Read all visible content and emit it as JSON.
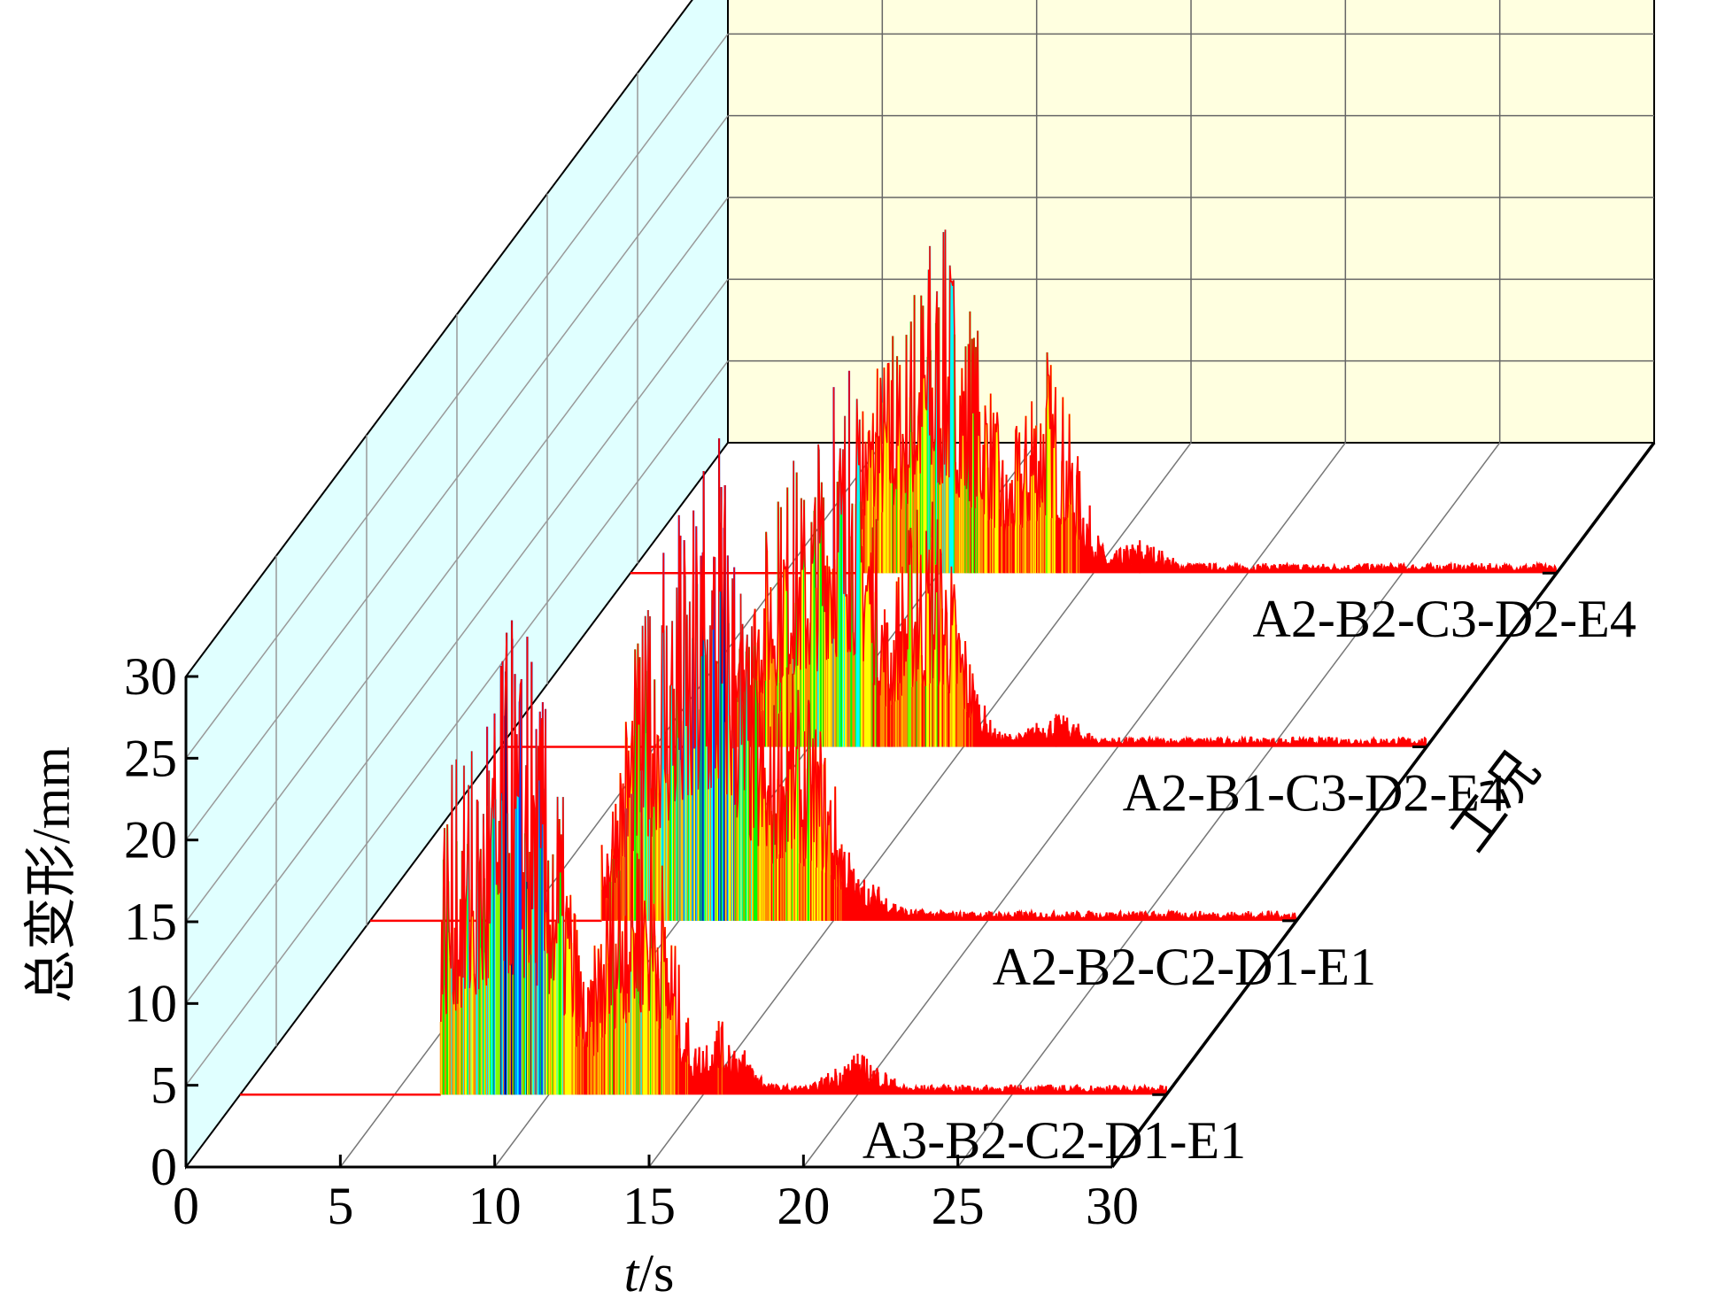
{
  "chart_data": {
    "type": "line",
    "subtype": "3d-waterfall",
    "xlabel_italic": "t",
    "xlabel_unit": "/s",
    "ylabel": "总变形/mm",
    "zlabel": "工况",
    "xlim": [
      0,
      30
    ],
    "ylim": [
      0,
      30
    ],
    "x_ticks": [
      "0",
      "5",
      "10",
      "15",
      "20",
      "25",
      "30"
    ],
    "y_ticks": [
      "0",
      "5",
      "10",
      "15",
      "20",
      "25",
      "30"
    ],
    "grid": true,
    "colormap": [
      "#ff0000",
      "#ff8c00",
      "#ffff00",
      "#00ff00",
      "#00ffff",
      "#0040ff",
      "#000080"
    ],
    "wall_colors": {
      "back": "#ffffe0",
      "side": "#e0ffff"
    },
    "series": [
      {
        "name": "A3-B2-C2-D1-E1",
        "onset": 6.5,
        "baseline_end": 30,
        "peaks": [
          [
            7.0,
            20.5
          ],
          [
            7.5,
            21.0
          ],
          [
            8.0,
            22.5
          ],
          [
            8.5,
            26.5
          ],
          [
            8.8,
            29.0
          ],
          [
            9.3,
            28.0
          ],
          [
            9.8,
            24.0
          ],
          [
            12.5,
            17.5
          ],
          [
            13.0,
            19.8
          ],
          [
            15.5,
            4.5
          ],
          [
            20.0,
            2.5
          ]
        ]
      },
      {
        "name": "A2-B2-C2-D1-E1",
        "onset": 7.5,
        "baseline_end": 30,
        "peaks": [
          [
            9.0,
            19.0
          ],
          [
            9.5,
            22.5
          ],
          [
            10.0,
            24.8
          ],
          [
            10.8,
            27.5
          ],
          [
            11.3,
            29.5
          ],
          [
            12.0,
            20.0
          ],
          [
            13.5,
            15.5
          ],
          [
            14.2,
            13.5
          ],
          [
            16.0,
            2.5
          ]
        ]
      },
      {
        "name": "A2-B1-C3-D2-E4",
        "onset": 7.5,
        "baseline_end": 30,
        "peaks": [
          [
            9.0,
            15.0
          ],
          [
            9.5,
            17.5
          ],
          [
            10.3,
            18.5
          ],
          [
            10.8,
            22.0
          ],
          [
            11.3,
            23.0
          ],
          [
            13.5,
            14.5
          ],
          [
            14.0,
            15.0
          ],
          [
            18.0,
            2.0
          ]
        ]
      },
      {
        "name": "A2-B2-C3-D2-E4",
        "onset": 7.5,
        "baseline_end": 30,
        "peaks": [
          [
            8.0,
            12.5
          ],
          [
            8.5,
            14.5
          ],
          [
            9.2,
            17.0
          ],
          [
            9.7,
            20.0
          ],
          [
            10.2,
            21.0
          ],
          [
            11.0,
            16.0
          ],
          [
            13.0,
            10.5
          ],
          [
            13.5,
            13.5
          ],
          [
            16.5,
            2.0
          ]
        ]
      }
    ]
  }
}
